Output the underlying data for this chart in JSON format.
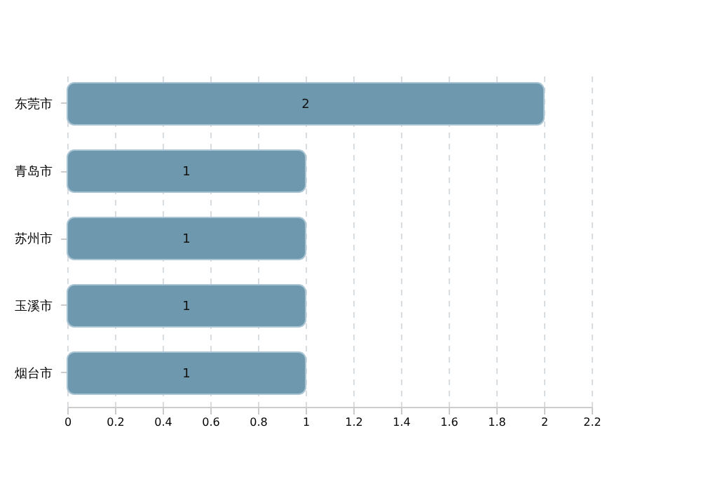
{
  "chart_data": {
    "type": "bar",
    "orientation": "horizontal",
    "categories": [
      "东莞市",
      "青岛市",
      "苏州市",
      "玉溪市",
      "烟台市"
    ],
    "values": [
      2,
      1,
      1,
      1,
      1
    ],
    "color": "#6e98ad",
    "xlim": [
      0,
      2.2
    ],
    "xticks": [
      0,
      0.2,
      0.4,
      0.6,
      0.8,
      1,
      1.2,
      1.4,
      1.6,
      1.8,
      2,
      2.2
    ],
    "grid": "x",
    "data_labels": true
  }
}
